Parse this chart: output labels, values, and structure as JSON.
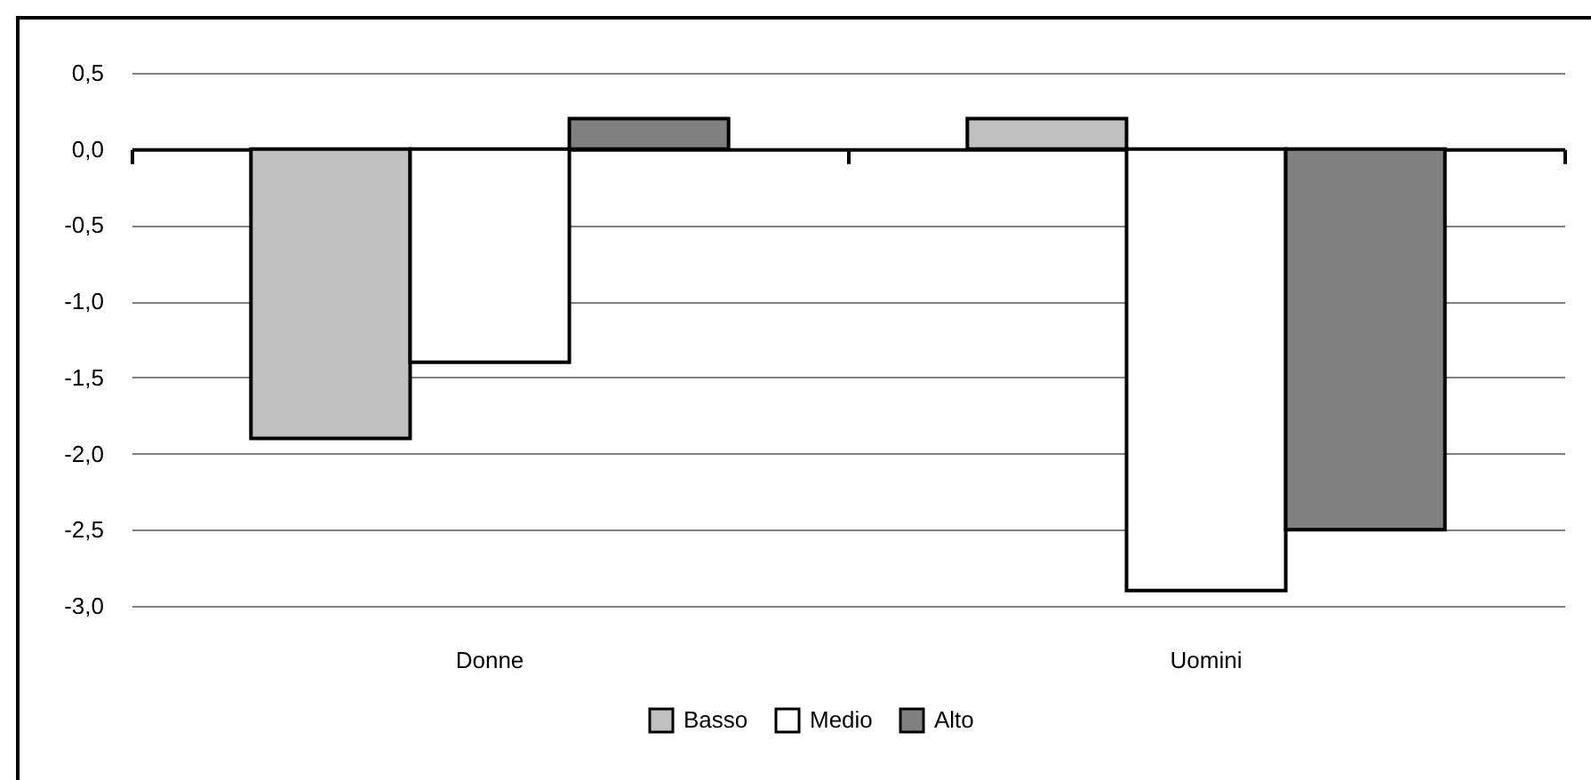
{
  "chart_data": {
    "type": "bar",
    "categories": [
      "Donne",
      "Uomini"
    ],
    "series": [
      {
        "name": "Basso",
        "color": "#c0c0c0",
        "values": [
          -1.9,
          0.2
        ]
      },
      {
        "name": "Medio",
        "color": "#ffffff",
        "values": [
          -1.4,
          -2.9
        ]
      },
      {
        "name": "Alto",
        "color": "#808080",
        "values": [
          0.2,
          -2.5
        ]
      }
    ],
    "ylim": [
      -3.0,
      0.5
    ],
    "yticks": [
      {
        "value": 0.5,
        "label": "0,5"
      },
      {
        "value": 0,
        "label": "0,0"
      },
      {
        "value": -0.5,
        "label": "-0,5"
      },
      {
        "value": -1.0,
        "label": "-1,0"
      },
      {
        "value": -1.5,
        "label": "-1,5"
      },
      {
        "value": -2.0,
        "label": "-2,0"
      },
      {
        "value": -2.5,
        "label": "-2,5"
      },
      {
        "value": -3.0,
        "label": "-3,0"
      }
    ],
    "grid": "y",
    "legend": "bottom"
  }
}
